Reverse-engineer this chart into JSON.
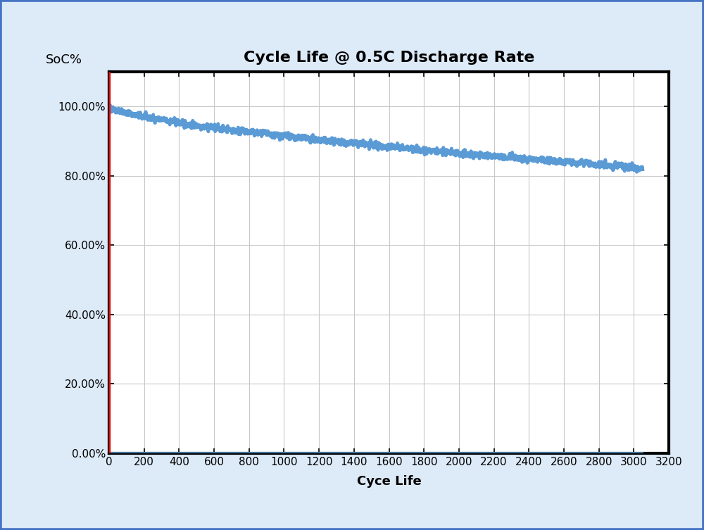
{
  "title": "Cycle Life @ 0.5C Discharge Rate",
  "xlabel": "Cyce Life",
  "ylabel": "SoC%",
  "xlim": [
    0,
    3200
  ],
  "ylim": [
    0,
    110
  ],
  "yticks": [
    0,
    20,
    40,
    60,
    80,
    100
  ],
  "ytick_labels": [
    "0.00%",
    "20.00%",
    "40.00%",
    "60.00%",
    "80.00%",
    "100.00%"
  ],
  "xticks": [
    0,
    200,
    400,
    600,
    800,
    1000,
    1200,
    1400,
    1600,
    1800,
    2000,
    2200,
    2400,
    2600,
    2800,
    3000,
    3200
  ],
  "line_color": "#5B9BD5",
  "red_line_color": "#FF0000",
  "grid_color": "#C8C8C8",
  "background_color": "#FFFFFF",
  "figure_border_color": "#4472C4",
  "plot_border_color": "#000000",
  "title_fontsize": 16,
  "label_fontsize": 13,
  "tick_fontsize": 11,
  "outer_bg": "#DDEAF8",
  "decay_shape": 0.65,
  "x_data_end": 3050,
  "y_start_pct": 100.0,
  "y_end_pct": 82.2,
  "noise_amplitude": 0.8,
  "line_width": 3.5
}
